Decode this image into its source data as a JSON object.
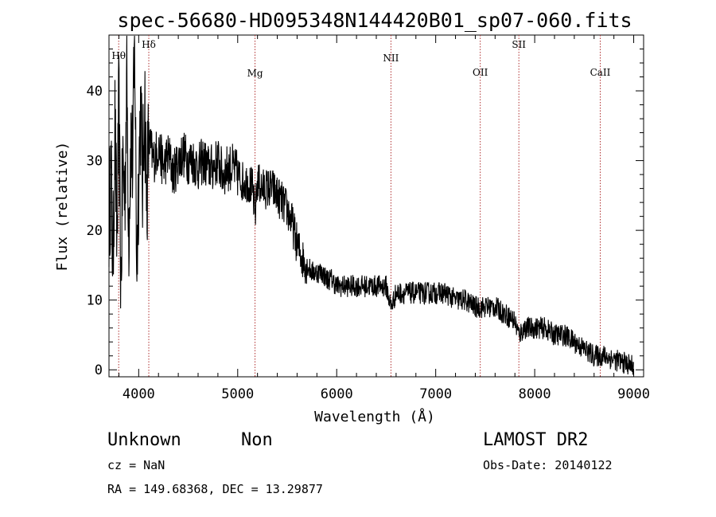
{
  "chart_data": {
    "type": "line",
    "title": "spec-56680-HD095348N144420B01_sp07-060.fits",
    "xlabel": "Wavelength (Å)",
    "ylabel": "Flux (relative)",
    "xlim": [
      3700,
      9100
    ],
    "ylim": [
      -1,
      48
    ],
    "x_ticks": [
      4000,
      5000,
      6000,
      7000,
      8000,
      9000
    ],
    "y_ticks": [
      0,
      10,
      20,
      30,
      40
    ],
    "spectral_lines": [
      {
        "label": "Hθ",
        "wavelength": 3798
      },
      {
        "label": "Hδ",
        "wavelength": 4102
      },
      {
        "label": "Mg",
        "wavelength": 5175
      },
      {
        "label": "NII",
        "wavelength": 6548
      },
      {
        "label": "OII",
        "wavelength": 7450
      },
      {
        "label": "SII",
        "wavelength": 7840
      },
      {
        "label": "CaII",
        "wavelength": 8662
      }
    ],
    "series": [
      {
        "points": [
          [
            3700,
            22
          ],
          [
            3720,
            28
          ],
          [
            3740,
            15
          ],
          [
            3760,
            35
          ],
          [
            3780,
            18
          ],
          [
            3800,
            38
          ],
          [
            3820,
            12
          ],
          [
            3840,
            30
          ],
          [
            3860,
            25
          ],
          [
            3880,
            42
          ],
          [
            3900,
            20
          ],
          [
            3920,
            33
          ],
          [
            3940,
            30
          ],
          [
            3960,
            47
          ],
          [
            3980,
            15
          ],
          [
            4000,
            28
          ],
          [
            4020,
            38
          ],
          [
            4040,
            26
          ],
          [
            4060,
            40
          ],
          [
            4080,
            24
          ],
          [
            4100,
            33
          ],
          [
            4150,
            30
          ],
          [
            4200,
            32
          ],
          [
            4250,
            29
          ],
          [
            4300,
            31
          ],
          [
            4350,
            28
          ],
          [
            4400,
            30
          ],
          [
            4450,
            31
          ],
          [
            4500,
            30
          ],
          [
            4550,
            30
          ],
          [
            4600,
            29
          ],
          [
            4650,
            30
          ],
          [
            4700,
            29
          ],
          [
            4750,
            29
          ],
          [
            4800,
            30
          ],
          [
            4850,
            28
          ],
          [
            4900,
            29
          ],
          [
            4950,
            29
          ],
          [
            5000,
            28
          ],
          [
            5050,
            27
          ],
          [
            5100,
            27
          ],
          [
            5150,
            26
          ],
          [
            5175,
            22
          ],
          [
            5200,
            27
          ],
          [
            5250,
            26
          ],
          [
            5300,
            26
          ],
          [
            5350,
            26
          ],
          [
            5400,
            25
          ],
          [
            5450,
            24
          ],
          [
            5500,
            23
          ],
          [
            5550,
            21
          ],
          [
            5600,
            18
          ],
          [
            5650,
            16
          ],
          [
            5700,
            15
          ],
          [
            5750,
            14
          ],
          [
            5800,
            14
          ],
          [
            5850,
            14
          ],
          [
            5900,
            13
          ],
          [
            5950,
            13
          ],
          [
            6000,
            12
          ],
          [
            6100,
            12
          ],
          [
            6200,
            12
          ],
          [
            6300,
            12
          ],
          [
            6400,
            12
          ],
          [
            6500,
            12
          ],
          [
            6548,
            9
          ],
          [
            6600,
            11
          ],
          [
            6700,
            11
          ],
          [
            6800,
            11
          ],
          [
            6900,
            11
          ],
          [
            7000,
            11
          ],
          [
            7100,
            11
          ],
          [
            7200,
            10
          ],
          [
            7300,
            10
          ],
          [
            7400,
            9
          ],
          [
            7500,
            9
          ],
          [
            7600,
            9
          ],
          [
            7700,
            8
          ],
          [
            7800,
            7
          ],
          [
            7840,
            5
          ],
          [
            7900,
            6
          ],
          [
            8000,
            6
          ],
          [
            8100,
            6
          ],
          [
            8200,
            5
          ],
          [
            8300,
            5
          ],
          [
            8400,
            4
          ],
          [
            8500,
            3
          ],
          [
            8600,
            2
          ],
          [
            8700,
            2
          ],
          [
            8800,
            1.5
          ],
          [
            8900,
            1
          ],
          [
            9000,
            0.5
          ]
        ]
      }
    ]
  },
  "info": {
    "object_class": "Unknown",
    "object_subclass": "Non",
    "cz": "cz = NaN",
    "coords": "RA = 149.68368, DEC =  13.29877",
    "survey": "LAMOST DR2",
    "obs_date": "Obs-Date: 20140122"
  }
}
